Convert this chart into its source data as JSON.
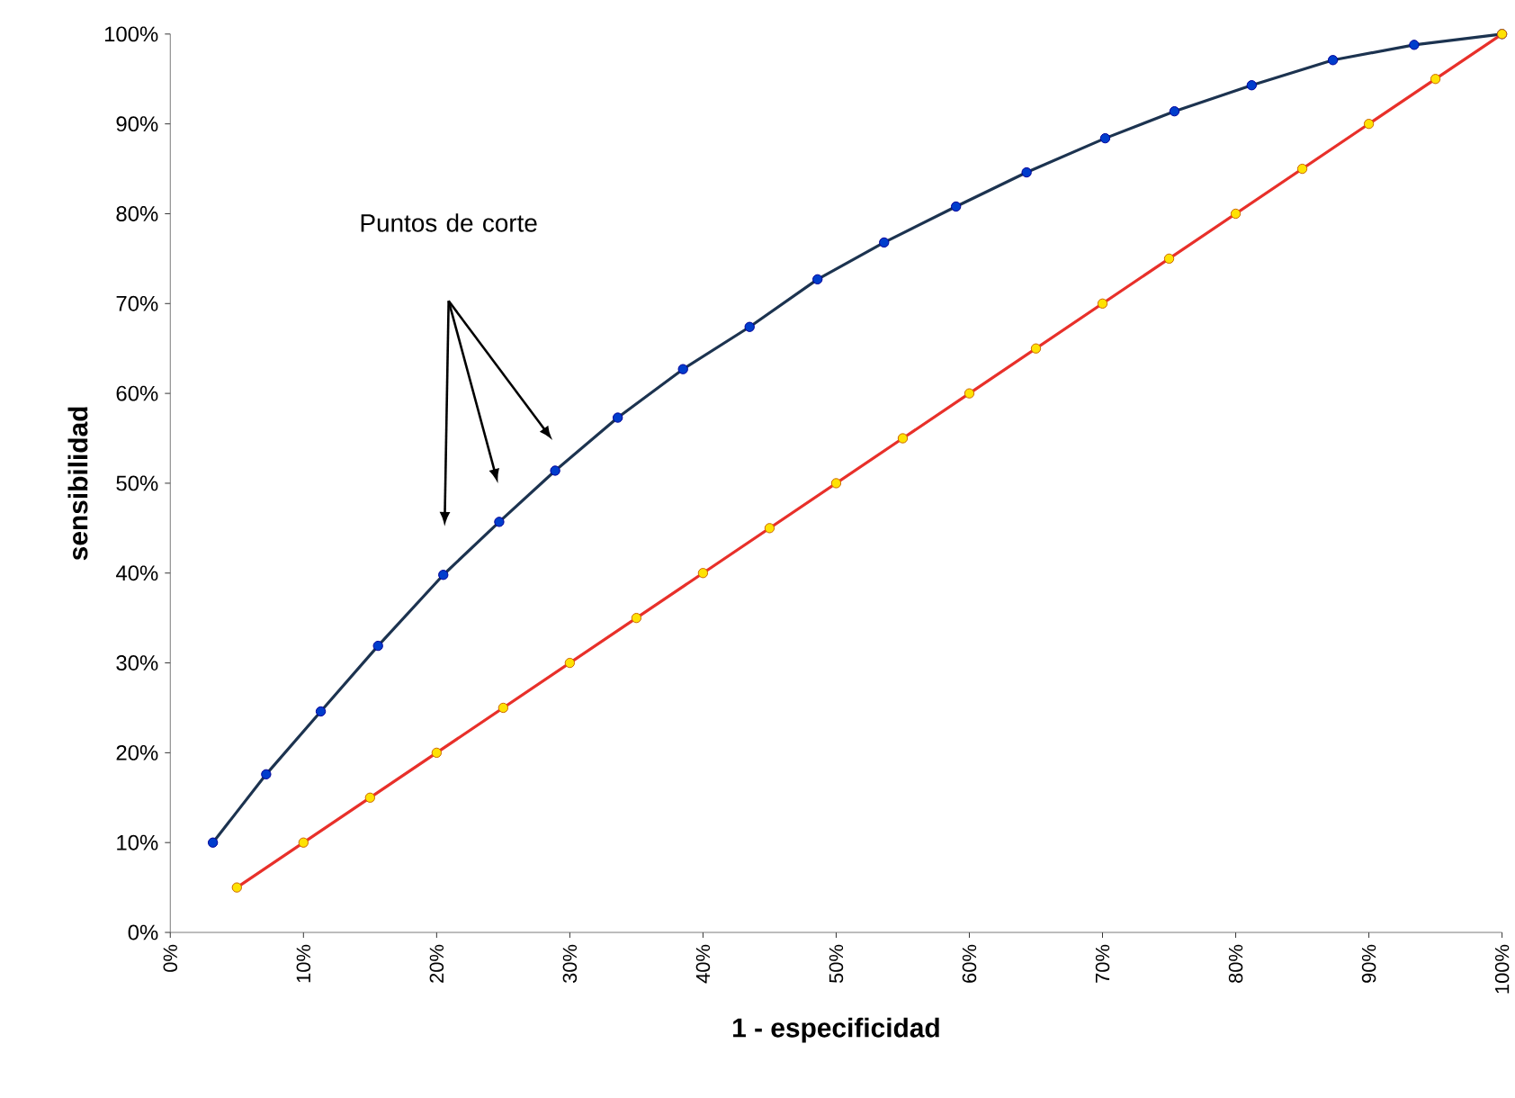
{
  "chart_data": {
    "type": "line",
    "xlabel": "1 - especificidad",
    "ylabel": "sensibilidad",
    "annotations": [
      "Puntos de corte"
    ],
    "marker": "circle",
    "xlim": [
      0,
      100
    ],
    "ylim": [
      0,
      100
    ],
    "xticks": [
      {
        "value": 0,
        "label": "0%"
      },
      {
        "value": 10,
        "label": "10%"
      },
      {
        "value": 20,
        "label": "20%"
      },
      {
        "value": 30,
        "label": "30%"
      },
      {
        "value": 40,
        "label": "40%"
      },
      {
        "value": 50,
        "label": "50%"
      },
      {
        "value": 60,
        "label": "60%"
      },
      {
        "value": 70,
        "label": "70%"
      },
      {
        "value": 80,
        "label": "80%"
      },
      {
        "value": 90,
        "label": "90%"
      },
      {
        "value": 100,
        "label": "100%"
      }
    ],
    "yticks": [
      {
        "value": 0,
        "label": "0%"
      },
      {
        "value": 10,
        "label": "10%"
      },
      {
        "value": 20,
        "label": "20%"
      },
      {
        "value": 30,
        "label": "30%"
      },
      {
        "value": 40,
        "label": "40%"
      },
      {
        "value": 50,
        "label": "50%"
      },
      {
        "value": 60,
        "label": "60%"
      },
      {
        "value": 70,
        "label": "70%"
      },
      {
        "value": 80,
        "label": "80%"
      },
      {
        "value": 90,
        "label": "90%"
      },
      {
        "value": 100,
        "label": "100%"
      }
    ],
    "series": [
      {
        "color": "#1c3350",
        "x": [
          3.2,
          7.2,
          11.3,
          15.6,
          20.5,
          24.7,
          28.9,
          33.6,
          38.5,
          43.5,
          48.6,
          53.6,
          59.0,
          64.3,
          70.2,
          75.4,
          81.2,
          87.3,
          93.4,
          100
        ],
        "values": [
          10,
          17.6,
          24.6,
          31.9,
          39.8,
          45.7,
          51.4,
          57.3,
          62.7,
          67.4,
          72.7,
          76.8,
          80.8,
          84.6,
          88.4,
          91.4,
          94.3,
          97.1,
          98.8,
          100
        ]
      },
      {
        "color": "#e8302a",
        "x": [
          5,
          10,
          15,
          20,
          25,
          30,
          35,
          40,
          45,
          50,
          55,
          60,
          65,
          70,
          75,
          80,
          85,
          90,
          95,
          100
        ],
        "values": [
          5,
          10,
          15,
          20,
          25,
          30,
          35,
          40,
          45,
          50,
          55,
          60,
          65,
          70,
          75,
          80,
          85,
          90,
          95,
          100
        ]
      }
    ]
  }
}
